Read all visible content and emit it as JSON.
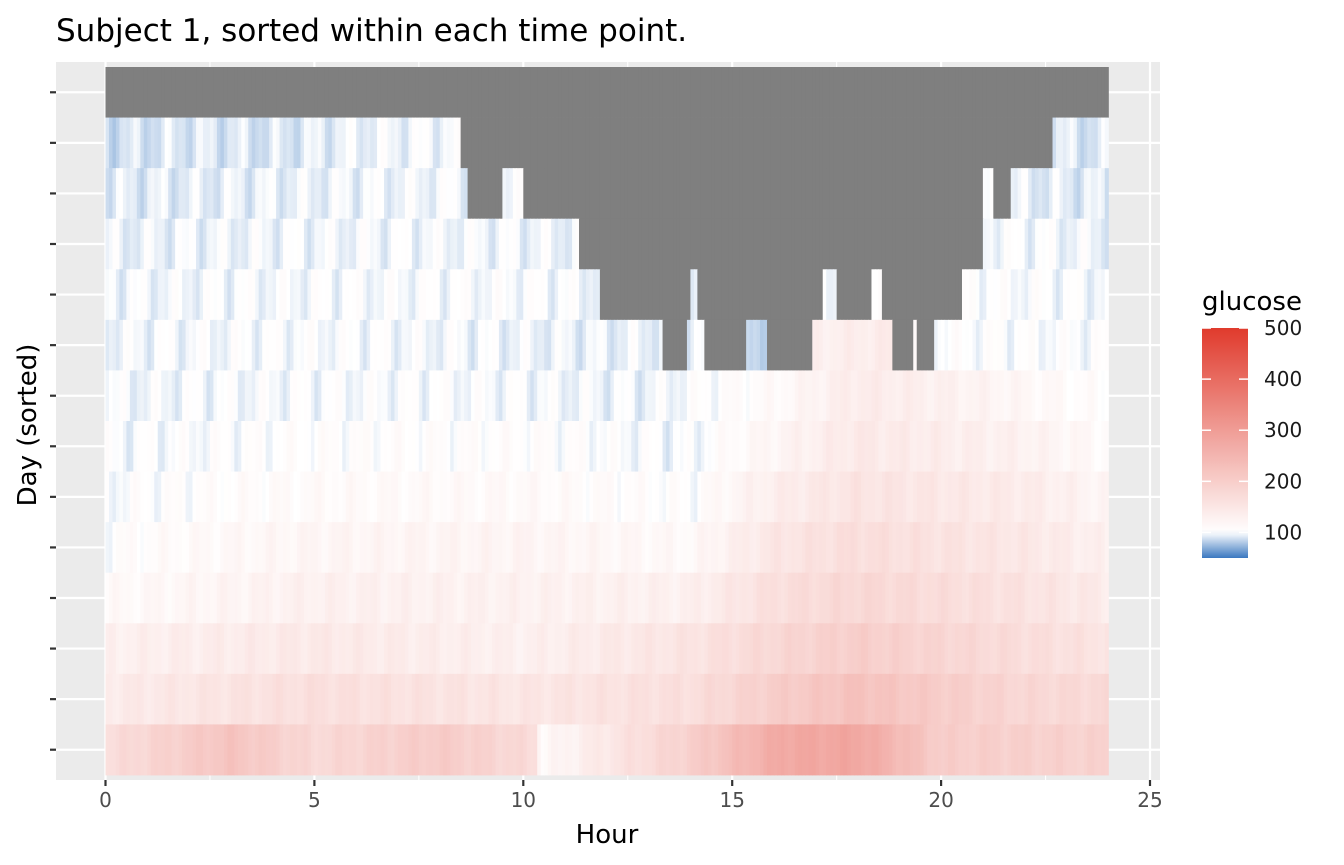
{
  "chart_data": {
    "type": "heatmap",
    "title": "Subject 1, sorted within each time point.",
    "xlabel": "Hour",
    "ylabel": "Day (sorted)",
    "xlim": [
      -0.25,
      25.1
    ],
    "x_ticks": [
      0,
      5,
      10,
      15,
      20,
      25
    ],
    "n_rows": 14,
    "y_tick_labels": "none",
    "grid": true,
    "legend_position": "right",
    "colors": {
      "panel_background": "#ebebeb",
      "grid": "#ffffff",
      "missing": "#7f7f7f",
      "low": "#3a78c0",
      "mid": "#ffffff",
      "high": "#e03a2c"
    },
    "legend": {
      "title": "glucose",
      "range": [
        50,
        500
      ],
      "midpoint": 100,
      "ticks": [
        100,
        200,
        300,
        400,
        500
      ]
    },
    "row_profiles": [
      {
        "row": 1,
        "keypoints": [
          [
            0,
            null
          ],
          [
            24,
            null
          ]
        ]
      },
      {
        "row": 2,
        "keypoints": [
          [
            0,
            88
          ],
          [
            2,
            92
          ],
          [
            4,
            90
          ],
          [
            6,
            96
          ],
          [
            8.5,
            98
          ],
          [
            8.5,
            null
          ],
          [
            22.7,
            null
          ],
          [
            22.7,
            92
          ],
          [
            24,
            90
          ]
        ]
      },
      {
        "row": 3,
        "keypoints": [
          [
            0,
            92
          ],
          [
            4,
            95
          ],
          [
            8.5,
            98
          ],
          [
            8.9,
            null
          ],
          [
            9.5,
            null
          ],
          [
            9.5,
            98
          ],
          [
            10.5,
            null
          ],
          [
            21.0,
            null
          ],
          [
            21.0,
            96
          ],
          [
            21.5,
            null
          ],
          [
            21.8,
            94
          ],
          [
            24,
            92
          ]
        ]
      },
      {
        "row": 4,
        "keypoints": [
          [
            0,
            95
          ],
          [
            4,
            97
          ],
          [
            8,
            98
          ],
          [
            11.3,
            96
          ],
          [
            11.3,
            null
          ],
          [
            21.0,
            null
          ],
          [
            21.0,
            100
          ],
          [
            24,
            96
          ]
        ]
      },
      {
        "row": 5,
        "keypoints": [
          [
            0,
            97
          ],
          [
            5,
            99
          ],
          [
            10,
            100
          ],
          [
            11.8,
            97
          ],
          [
            11.8,
            null
          ],
          [
            14.0,
            null
          ],
          [
            14.0,
            98
          ],
          [
            14.3,
            null
          ],
          [
            17.2,
            null
          ],
          [
            17.2,
            95
          ],
          [
            17.8,
            null
          ],
          [
            18.3,
            null
          ],
          [
            18.3,
            110
          ],
          [
            18.8,
            null
          ],
          [
            20.5,
            null
          ],
          [
            20.5,
            102
          ],
          [
            24,
            98
          ]
        ]
      },
      {
        "row": 6,
        "keypoints": [
          [
            0,
            97
          ],
          [
            5,
            100
          ],
          [
            11.8,
            95
          ],
          [
            13.3,
            96
          ],
          [
            13.3,
            null
          ],
          [
            13.9,
            null
          ],
          [
            13.9,
            97
          ],
          [
            14.8,
            null
          ],
          [
            15.3,
            null
          ],
          [
            15.3,
            88
          ],
          [
            16.4,
            null
          ],
          [
            16.9,
            null
          ],
          [
            16.9,
            130
          ],
          [
            18.8,
            140
          ],
          [
            18.8,
            null
          ],
          [
            19.3,
            null
          ],
          [
            19.3,
            110
          ],
          [
            19.5,
            null
          ],
          [
            19.8,
            null
          ],
          [
            19.8,
            102
          ],
          [
            24,
            100
          ]
        ]
      },
      {
        "row": 7,
        "keypoints": [
          [
            0,
            97
          ],
          [
            4,
            99
          ],
          [
            8,
            100
          ],
          [
            13,
            96
          ],
          [
            16,
            110
          ],
          [
            18,
            140
          ],
          [
            20,
            130
          ],
          [
            24,
            102
          ]
        ]
      },
      {
        "row": 8,
        "keypoints": [
          [
            0,
            98
          ],
          [
            5,
            104
          ],
          [
            10,
            105
          ],
          [
            14,
            97
          ],
          [
            16,
            120
          ],
          [
            18,
            145
          ],
          [
            22,
            128
          ],
          [
            24,
            108
          ]
        ]
      },
      {
        "row": 9,
        "keypoints": [
          [
            0,
            100
          ],
          [
            5,
            110
          ],
          [
            10,
            112
          ],
          [
            14,
            102
          ],
          [
            16,
            135
          ],
          [
            18,
            155
          ],
          [
            22,
            140
          ],
          [
            24,
            118
          ]
        ]
      },
      {
        "row": 10,
        "keypoints": [
          [
            0,
            104
          ],
          [
            5,
            120
          ],
          [
            10,
            122
          ],
          [
            14,
            112
          ],
          [
            16,
            150
          ],
          [
            18,
            168
          ],
          [
            22,
            148
          ],
          [
            24,
            128
          ]
        ]
      },
      {
        "row": 11,
        "keypoints": [
          [
            0,
            110
          ],
          [
            5,
            130
          ],
          [
            10,
            128
          ],
          [
            14,
            130
          ],
          [
            16,
            165
          ],
          [
            18,
            180
          ],
          [
            22,
            158
          ],
          [
            24,
            140
          ]
        ]
      },
      {
        "row": 12,
        "keypoints": [
          [
            0,
            130
          ],
          [
            5,
            145
          ],
          [
            10,
            130
          ],
          [
            14,
            155
          ],
          [
            16,
            180
          ],
          [
            18,
            200
          ],
          [
            22,
            168
          ],
          [
            24,
            155
          ]
        ]
      },
      {
        "row": 13,
        "keypoints": [
          [
            0,
            140
          ],
          [
            5,
            165
          ],
          [
            10,
            150
          ],
          [
            14,
            165
          ],
          [
            16,
            200
          ],
          [
            18,
            225
          ],
          [
            22,
            180
          ],
          [
            24,
            175
          ]
        ]
      },
      {
        "row": 14,
        "keypoints": [
          [
            0,
            165
          ],
          [
            3,
            220
          ],
          [
            5,
            175
          ],
          [
            8,
            205
          ],
          [
            10.3,
            170
          ],
          [
            10.4,
            110
          ],
          [
            14,
            195
          ],
          [
            16.2,
            275
          ],
          [
            18,
            280
          ],
          [
            20,
            200
          ],
          [
            24,
            190
          ]
        ]
      }
    ]
  }
}
